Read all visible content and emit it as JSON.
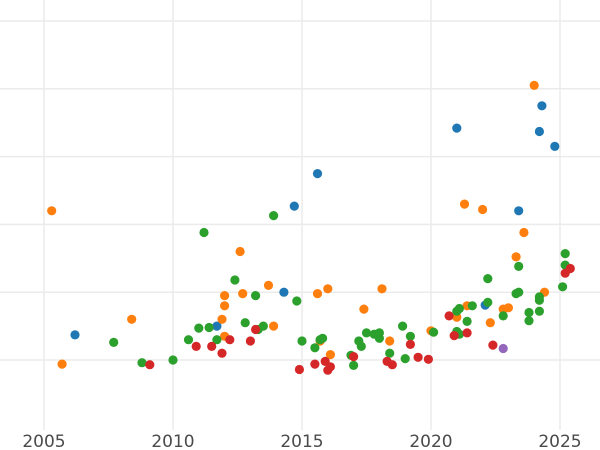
{
  "chart_data": {
    "type": "scatter",
    "title": "",
    "xlabel": "",
    "ylabel": "",
    "xlim": [
      2004.6,
      2026.5
    ],
    "ylim": [
      -1.0,
      5.4
    ],
    "x_ticks": [
      2005,
      2010,
      2015,
      2020,
      2025
    ],
    "y_ticks": [
      0,
      1,
      2,
      3,
      4,
      5
    ],
    "y_tick_labels_visible": false,
    "grid": true,
    "legend": "none",
    "colors": {
      "blue": "#1f77b4",
      "orange": "#ff7f0e",
      "green": "#2ca02c",
      "red": "#d62728",
      "purple": "#9467bd"
    },
    "series": [
      {
        "color": "#1f77b4",
        "points": [
          [
            2006.2,
            0.37
          ],
          [
            2011.7,
            0.5
          ],
          [
            2014.3,
            1.0
          ],
          [
            2014.7,
            2.27
          ],
          [
            2015.6,
            2.75
          ],
          [
            2021.0,
            3.42
          ],
          [
            2022.1,
            0.81
          ],
          [
            2023.4,
            2.2
          ],
          [
            2024.2,
            3.37
          ],
          [
            2024.3,
            3.75
          ],
          [
            2024.8,
            3.15
          ]
        ]
      },
      {
        "color": "#ff7f0e",
        "points": [
          [
            2005.3,
            2.2
          ],
          [
            2005.7,
            -0.06
          ],
          [
            2008.4,
            0.6
          ],
          [
            2011.9,
            0.6
          ],
          [
            2012.0,
            0.8
          ],
          [
            2012.0,
            0.95
          ],
          [
            2012.6,
            1.6
          ],
          [
            2012.7,
            0.98
          ],
          [
            2012.0,
            0.35
          ],
          [
            2013.7,
            1.1
          ],
          [
            2013.9,
            0.5
          ],
          [
            2015.6,
            0.98
          ],
          [
            2015.7,
            0.28
          ],
          [
            2016.0,
            1.05
          ],
          [
            2016.1,
            0.08
          ],
          [
            2017.4,
            0.75
          ],
          [
            2018.1,
            1.05
          ],
          [
            2018.4,
            0.28
          ],
          [
            2020.0,
            0.43
          ],
          [
            2021.0,
            0.63
          ],
          [
            2021.3,
            2.3
          ],
          [
            2021.4,
            0.8
          ],
          [
            2022.0,
            2.22
          ],
          [
            2022.3,
            0.55
          ],
          [
            2022.8,
            0.75
          ],
          [
            2023.0,
            0.77
          ],
          [
            2023.3,
            1.52
          ],
          [
            2023.6,
            1.88
          ],
          [
            2024.0,
            4.05
          ],
          [
            2024.4,
            1.0
          ]
        ]
      },
      {
        "color": "#2ca02c",
        "points": [
          [
            2007.7,
            0.26
          ],
          [
            2008.8,
            -0.04
          ],
          [
            2010.0,
            0.0
          ],
          [
            2010.6,
            0.3
          ],
          [
            2011.0,
            0.47
          ],
          [
            2011.2,
            1.88
          ],
          [
            2011.4,
            0.48
          ],
          [
            2011.7,
            0.3
          ],
          [
            2012.4,
            1.18
          ],
          [
            2012.8,
            0.55
          ],
          [
            2013.2,
            0.95
          ],
          [
            2013.3,
            0.45
          ],
          [
            2013.5,
            0.5
          ],
          [
            2013.9,
            2.13
          ],
          [
            2014.8,
            0.87
          ],
          [
            2015.0,
            0.28
          ],
          [
            2015.5,
            0.18
          ],
          [
            2015.7,
            0.3
          ],
          [
            2015.8,
            0.32
          ],
          [
            2016.9,
            0.07
          ],
          [
            2017.0,
            -0.08
          ],
          [
            2017.2,
            0.28
          ],
          [
            2017.3,
            0.2
          ],
          [
            2017.5,
            0.4
          ],
          [
            2017.8,
            0.38
          ],
          [
            2018.0,
            0.4
          ],
          [
            2018.0,
            0.32
          ],
          [
            2018.4,
            0.1
          ],
          [
            2018.9,
            0.5
          ],
          [
            2019.0,
            0.02
          ],
          [
            2019.2,
            0.35
          ],
          [
            2020.1,
            0.41
          ],
          [
            2021.0,
            0.42
          ],
          [
            2021.0,
            0.72
          ],
          [
            2021.1,
            0.76
          ],
          [
            2021.1,
            0.38
          ],
          [
            2021.4,
            0.57
          ],
          [
            2021.6,
            0.8
          ],
          [
            2022.2,
            0.85
          ],
          [
            2022.2,
            1.2
          ],
          [
            2022.8,
            0.65
          ],
          [
            2023.3,
            0.98
          ],
          [
            2023.4,
            1.0
          ],
          [
            2023.4,
            1.38
          ],
          [
            2023.8,
            0.58
          ],
          [
            2023.8,
            0.7
          ],
          [
            2024.2,
            0.72
          ],
          [
            2024.2,
            0.88
          ],
          [
            2024.2,
            0.93
          ],
          [
            2025.1,
            1.08
          ],
          [
            2025.2,
            1.4
          ],
          [
            2025.2,
            1.57
          ]
        ]
      },
      {
        "color": "#d62728",
        "points": [
          [
            2009.1,
            -0.07
          ],
          [
            2010.9,
            0.2
          ],
          [
            2011.5,
            0.2
          ],
          [
            2011.9,
            0.1
          ],
          [
            2012.2,
            0.3
          ],
          [
            2013.0,
            0.28
          ],
          [
            2013.2,
            0.45
          ],
          [
            2014.9,
            -0.14
          ],
          [
            2015.5,
            -0.06
          ],
          [
            2015.9,
            -0.02
          ],
          [
            2016.0,
            -0.15
          ],
          [
            2016.1,
            -0.1
          ],
          [
            2017.0,
            0.05
          ],
          [
            2018.3,
            -0.02
          ],
          [
            2018.5,
            -0.07
          ],
          [
            2019.2,
            0.23
          ],
          [
            2019.5,
            0.04
          ],
          [
            2019.9,
            0.01
          ],
          [
            2020.7,
            0.65
          ],
          [
            2020.9,
            0.36
          ],
          [
            2021.4,
            0.4
          ],
          [
            2022.4,
            0.22
          ],
          [
            2025.2,
            1.28
          ],
          [
            2025.4,
            1.35
          ]
        ]
      },
      {
        "color": "#9467bd",
        "points": [
          [
            2022.8,
            0.17
          ]
        ]
      }
    ]
  }
}
